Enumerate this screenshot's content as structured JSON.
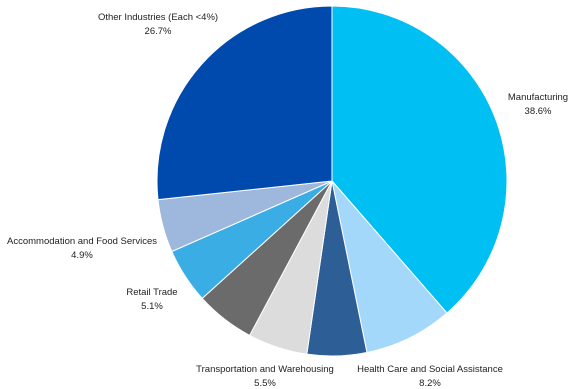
{
  "chart_data": {
    "type": "pie",
    "title": "",
    "start": "12 o'clock",
    "direction": "clockwise",
    "slices": [
      {
        "label": "Manufacturing",
        "value": 38.6,
        "value_label": "38.6%",
        "color": "#00BFF3"
      },
      {
        "label": "Health Care and Social Assistance",
        "value": 8.2,
        "value_label": "8.2%",
        "color": "#A3D8FA"
      },
      {
        "label": "",
        "value": 5.5,
        "value_label": "",
        "color": "#2E5E96"
      },
      {
        "label": "Transportation and Warehousing",
        "value": 5.5,
        "value_label": "5.5%",
        "color": "#DCDCDC"
      },
      {
        "label": "",
        "value": 5.5,
        "value_label": "",
        "color": "#6B6B6B"
      },
      {
        "label": "Retail Trade",
        "value": 5.1,
        "value_label": "5.1%",
        "color": "#3AADE4"
      },
      {
        "label": "Accommodation and Food Services",
        "value": 4.9,
        "value_label": "4.9%",
        "color": "#9EB7DD"
      },
      {
        "label": "Other Industries (Each <4%)",
        "value": 26.7,
        "value_label": "26.7%",
        "color": "#004AAD"
      }
    ]
  }
}
